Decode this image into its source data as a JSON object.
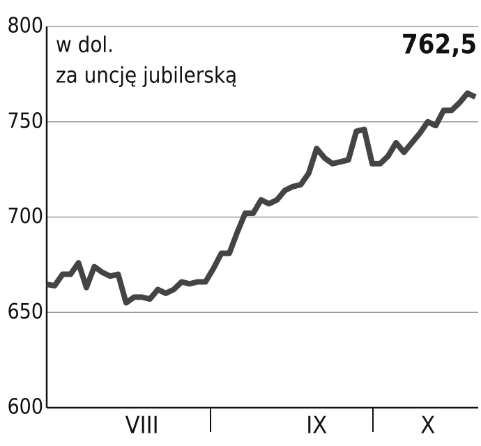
{
  "chart_data": {
    "type": "line",
    "annotations": [
      "w dol.",
      "za uncję jubilerską"
    ],
    "last_value_label": "762,5",
    "categories": [
      null,
      null,
      null,
      null,
      null,
      null,
      null,
      null,
      null,
      null,
      null,
      null,
      "VIII",
      null,
      null,
      null,
      null,
      null,
      null,
      null,
      null,
      null,
      null,
      null,
      null,
      null,
      null,
      null,
      null,
      null,
      null,
      null,
      null,
      null,
      "IX",
      null,
      null,
      null,
      null,
      null,
      null,
      null,
      null,
      null,
      null,
      null,
      null,
      null,
      "X",
      null,
      null,
      null,
      null,
      null,
      null
    ],
    "series": [
      {
        "color": "#444444",
        "values": [
          664.7,
          664,
          670,
          670,
          676,
          663,
          674,
          671,
          669,
          670,
          655,
          658,
          658,
          657,
          662,
          660,
          662,
          666,
          665,
          666,
          666,
          673,
          681,
          681,
          692,
          702,
          702,
          709,
          707,
          709,
          714,
          716,
          717,
          723,
          736,
          731,
          728,
          729,
          730,
          745,
          746,
          728,
          728,
          732,
          739,
          734,
          739,
          744,
          750,
          748,
          756,
          756,
          760,
          765,
          763
        ]
      }
    ],
    "ylim": [
      600,
      800
    ],
    "yticks": [
      600,
      650,
      700,
      750,
      800
    ],
    "grid": true
  }
}
